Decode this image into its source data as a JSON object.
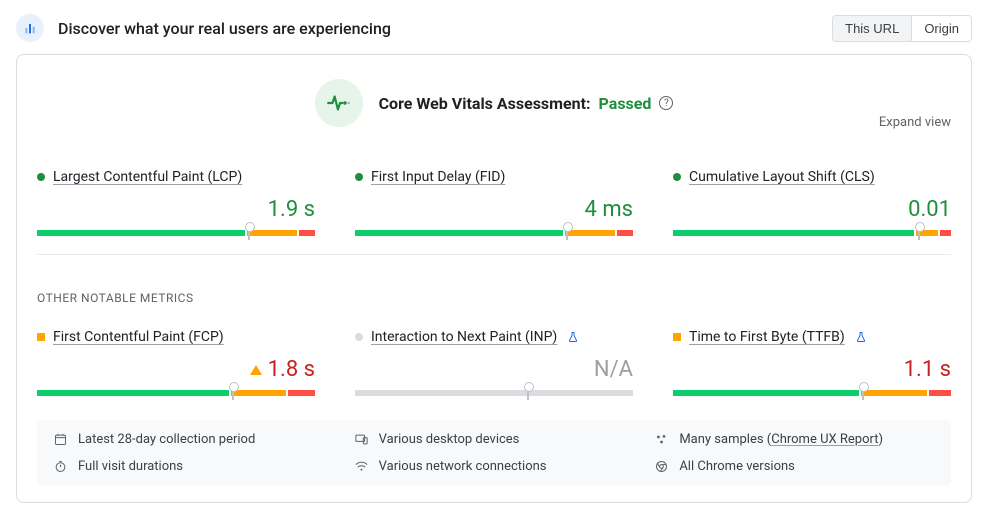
{
  "colors": {
    "good": "#1e8e3e",
    "good_bar": "#0cce6b",
    "warn": "#ffa400",
    "bad": "#ff4e42",
    "neutral": "#dadce0",
    "text_muted": "#5f6368",
    "blue": "#1a73e8",
    "na_text": "#9aa0a6"
  },
  "header": {
    "title": "Discover what your real users are experiencing",
    "toggle": {
      "this_url": "This URL",
      "origin": "Origin",
      "active": "this_url"
    }
  },
  "assessment": {
    "label": "Core Web Vitals Assessment:",
    "status": "Passed"
  },
  "expand_label": "Expand view",
  "core_metrics": [
    {
      "id": "lcp",
      "name": "Largest Contentful Paint (LCP)",
      "value": "1.9 s",
      "status": "good",
      "indicator": "dot",
      "value_color": "#1e8e3e",
      "bar": {
        "green": 76,
        "amber": 18,
        "red": 6,
        "marker": 76,
        "empty": false
      }
    },
    {
      "id": "fid",
      "name": "First Input Delay (FID)",
      "value": "4 ms",
      "status": "good",
      "indicator": "dot",
      "value_color": "#1e8e3e",
      "bar": {
        "green": 76,
        "amber": 18,
        "red": 6,
        "marker": 76,
        "empty": false,
        "red_tiny": true
      }
    },
    {
      "id": "cls",
      "name": "Cumulative Layout Shift (CLS)",
      "value": "0.01",
      "status": "good",
      "indicator": "dot",
      "value_color": "#1e8e3e",
      "bar": {
        "green": 88,
        "amber": 8,
        "red": 4,
        "marker": 88,
        "empty": false
      }
    }
  ],
  "other_label": "OTHER NOTABLE METRICS",
  "other_metrics": [
    {
      "id": "fcp",
      "name": "First Contentful Paint (FCP)",
      "value": "1.8 s",
      "status": "warn",
      "indicator": "square",
      "value_color": "#c5221f",
      "show_warn_tri": true,
      "bar": {
        "green": 70,
        "amber": 20,
        "red": 10,
        "marker": 70,
        "empty": false
      }
    },
    {
      "id": "inp",
      "name": "Interaction to Next Paint (INP)",
      "value": "N/A",
      "status": "neutral",
      "indicator": "dot",
      "experimental": true,
      "value_color": "#9aa0a6",
      "bar": {
        "green": 0,
        "amber": 0,
        "red": 0,
        "marker": 62,
        "empty": true
      }
    },
    {
      "id": "ttfb",
      "name": "Time to First Byte (TTFB)",
      "value": "1.1 s",
      "status": "warn",
      "indicator": "square",
      "experimental": true,
      "value_color": "#c5221f",
      "bar": {
        "green": 68,
        "amber": 24,
        "red": 8,
        "marker": 68,
        "empty": false
      }
    }
  ],
  "meta": {
    "period": "Latest 28-day collection period",
    "devices": "Various desktop devices",
    "samples_prefix": "Many samples (",
    "samples_link": "Chrome UX Report",
    "samples_suffix": ")",
    "durations": "Full visit durations",
    "network": "Various network connections",
    "versions": "All Chrome versions"
  }
}
